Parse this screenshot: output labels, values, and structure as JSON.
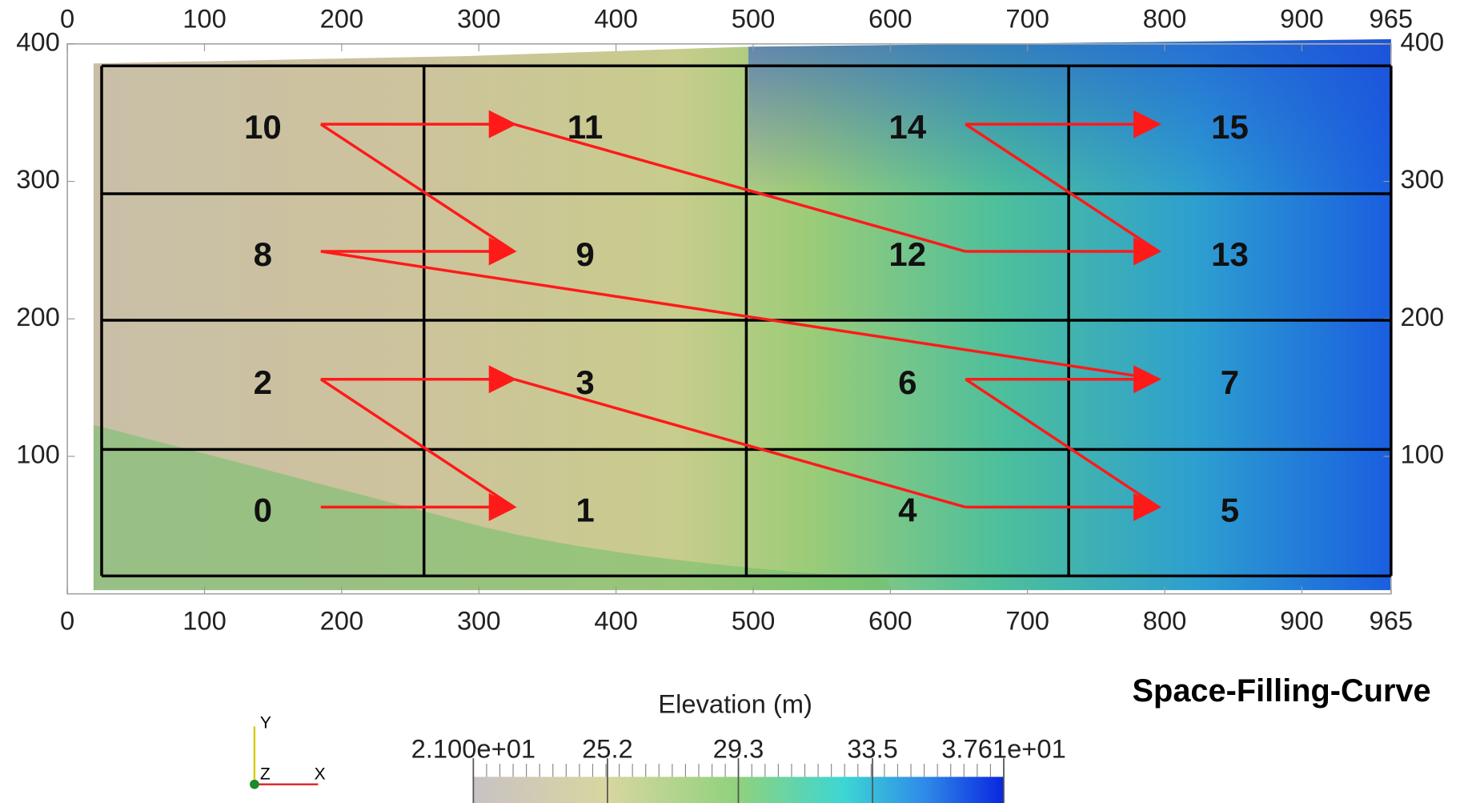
{
  "chart_data": {
    "type": "grid_map",
    "title": "Space-Filling-Curve",
    "xlim": [
      0,
      965
    ],
    "ylim": [
      0,
      400
    ],
    "xticks": [
      0,
      100,
      200,
      300,
      400,
      500,
      600,
      700,
      800,
      900,
      965
    ],
    "yticks": [
      100,
      200,
      300,
      400
    ],
    "cell_x_edges": [
      25,
      260,
      495,
      730,
      965
    ],
    "cell_y_edges": [
      384,
      291,
      199,
      105,
      13
    ],
    "cell_labels": [
      [
        "10",
        "11",
        "14",
        "15"
      ],
      [
        "8",
        "9",
        "12",
        "13"
      ],
      [
        "2",
        "3",
        "6",
        "7"
      ],
      [
        "0",
        "1",
        "4",
        "5"
      ]
    ],
    "colorbar": {
      "title": "Elevation (m)",
      "lim": [
        21,
        37.61
      ],
      "ticks": [
        {
          "value": 21,
          "label": "2.100e+01"
        },
        25.2,
        29.3,
        33.5,
        {
          "value": 37.61,
          "label": "3.761e+01"
        }
      ]
    },
    "axes_gizmo": {
      "x": "X",
      "y": "Y",
      "z": "Z"
    }
  }
}
